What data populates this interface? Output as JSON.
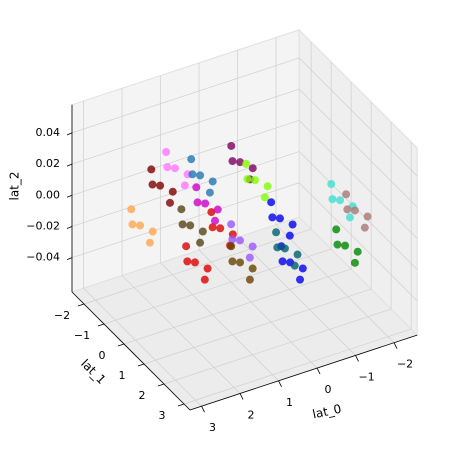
{
  "chart_data": {
    "type": "scatter3d",
    "xlabel": "lat_0",
    "ylabel": "lat_1",
    "zlabel": "lat_2",
    "xlim": [
      -2.6,
      3.3
    ],
    "ylim": [
      -2.6,
      3.3
    ],
    "zlim": [
      -0.062,
      0.058
    ],
    "xticks": [
      {
        "value": -2,
        "label": "−2"
      },
      {
        "value": -1,
        "label": "−1"
      },
      0,
      1,
      2,
      3
    ],
    "yticks": [
      {
        "value": -2,
        "label": "−2"
      },
      {
        "value": -1,
        "label": "−1"
      },
      0,
      1,
      2,
      3
    ],
    "zticks": [
      {
        "value": -0.04,
        "label": "−0.04"
      },
      {
        "value": -0.02,
        "label": "−0.02"
      },
      {
        "value": 0,
        "label": "0.00"
      },
      0.02,
      0.04
    ],
    "grid": true,
    "series": [
      {
        "color": "#800000",
        "x": [
          1.39,
          1.64,
          1.14,
          1.49,
          1.29
        ],
        "y": [
          -1.87,
          -1.77,
          -1.72,
          -2.12,
          -1.57
        ],
        "values": [
          0,
          0.004,
          -0.004,
          0.008,
          -0.008
        ]
      },
      {
        "color": "#800060",
        "x": [
          -0.63,
          -0.38,
          -0.88,
          -0.53,
          -0.73
        ],
        "y": [
          -1.76,
          -1.66,
          -1.61,
          -2.01,
          -1.46
        ],
        "values": [
          0,
          0.004,
          -0.004,
          0.008,
          -0.008
        ]
      },
      {
        "color": "#80ff00",
        "x": [
          -0.57,
          -0.32,
          -0.82,
          -0.47,
          -0.67
        ],
        "y": [
          -0.9,
          -0.8,
          -0.75,
          -1.15,
          -0.6
        ],
        "values": [
          0,
          0.004,
          -0.004,
          0.008,
          -0.008
        ]
      },
      {
        "color": "#ff77ff",
        "x": [
          0.76,
          1.01,
          0.51,
          0.86,
          0.66
        ],
        "y": [
          -2.34,
          -2.24,
          -2.19,
          -2.59,
          -2.04
        ],
        "values": [
          0,
          0.004,
          -0.004,
          0.008,
          -0.008
        ]
      },
      {
        "color": "#1f77b4",
        "x": [
          0.41,
          0.66,
          0.16,
          0.51,
          0.31
        ],
        "y": [
          -1.76,
          -1.66,
          -1.61,
          -2.01,
          -1.46
        ],
        "values": [
          0,
          0.004,
          -0.004,
          0.008,
          -0.008
        ]
      },
      {
        "color": "#ffa64d",
        "x": [
          2.56,
          2.81,
          2.31,
          2.66,
          2.46
        ],
        "y": [
          -0.62,
          -0.52,
          -0.47,
          -0.87,
          -0.32
        ],
        "values": [
          0,
          0.004,
          -0.004,
          0.008,
          -0.008
        ]
      },
      {
        "color": "#554411",
        "x": [
          1.58,
          1.83,
          1.33,
          1.68,
          1.48
        ],
        "y": [
          0,
          0.1,
          0.15,
          -0.25,
          0.3
        ],
        "values": [
          0,
          0.004,
          -0.004,
          0.008,
          -0.008
        ]
      },
      {
        "color": "#dd0000",
        "x": [
          1.05,
          1.3,
          0.8,
          1.15,
          0.95
        ],
        "y": [
          0.48,
          0.58,
          0.63,
          0.23,
          0.78
        ],
        "values": [
          0,
          0.004,
          -0.004,
          0.008,
          -0.008
        ]
      },
      {
        "color": "#dd0000",
        "x": [
          2.21,
          2.46,
          1.96,
          2.31,
          2.11
        ],
        "y": [
          1.45,
          1.55,
          1.6,
          1.2,
          1.75
        ],
        "values": [
          0,
          0.004,
          -0.004,
          0.008,
          -0.008
        ]
      },
      {
        "color": "#40e0d0",
        "x": [
          -1.84,
          -1.59,
          -2.09,
          -1.74,
          -1.94
        ],
        "y": [
          0.91,
          1.01,
          1.06,
          0.66,
          1.21
        ],
        "values": [
          0,
          0.004,
          -0.004,
          0.008,
          -0.008
        ]
      },
      {
        "color": "#0000ee",
        "x": [
          -0.31,
          -0.06,
          -0.56,
          -0.21,
          -0.41
        ],
        "y": [
          0.85,
          0.95,
          1.0,
          0.6,
          1.15
        ],
        "values": [
          0,
          0.004,
          -0.004,
          0.008,
          -0.008
        ]
      },
      {
        "color": "#0000ee",
        "x": [
          0.35,
          0.6,
          0.1,
          0.45,
          0.25
        ],
        "y": [
          2.63,
          2.73,
          2.78,
          2.38,
          2.93
        ],
        "values": [
          0,
          0.004,
          -0.004,
          0.008,
          -0.008
        ]
      },
      {
        "color": "#008800",
        "x": [
          -1.05,
          -0.8,
          -1.3,
          -0.95,
          -1.15
        ],
        "y": [
          2.68,
          2.78,
          2.83,
          2.43,
          2.98
        ],
        "values": [
          0,
          0.004,
          -0.004,
          0.008,
          -0.008
        ]
      },
      {
        "color": "#006070",
        "x": [
          0.18,
          0.43,
          -0.07,
          0.28,
          0.08
        ],
        "y": [
          2.04,
          2.14,
          2.19,
          1.79,
          2.34
        ],
        "values": [
          0,
          0.004,
          -0.004,
          0.008,
          -0.008
        ]
      },
      {
        "color": "#9955ff",
        "x": [
          0.9,
          1.15,
          0.65,
          1.0,
          0.8
        ],
        "y": [
          1.18,
          1.28,
          1.33,
          0.93,
          1.48
        ],
        "values": [
          0,
          0.004,
          -0.004,
          0.008,
          -0.008
        ]
      },
      {
        "color": "#664400",
        "x": [
          1.33,
          1.58,
          1.08,
          1.43,
          1.23
        ],
        "y": [
          2.01,
          2.11,
          2.16,
          1.76,
          2.31
        ],
        "values": [
          0,
          0.004,
          -0.004,
          0.008,
          -0.008
        ]
      },
      {
        "color": "#aa7777",
        "x": [
          -1.93,
          -1.68,
          -2.18,
          -1.83,
          -2.03
        ],
        "y": [
          1.48,
          1.58,
          1.63,
          1.23,
          1.78
        ],
        "values": [
          0,
          0.004,
          -0.004,
          0.008,
          -0.008
        ]
      },
      {
        "color": "#cc00cc",
        "x": [
          0.86,
          1.11,
          0.61,
          0.96,
          0.76
        ],
        "y": [
          -0.64,
          -0.54,
          -0.49,
          -0.89,
          -0.34
        ],
        "values": [
          0,
          0.004,
          -0.004,
          0.008,
          -0.008
        ]
      }
    ]
  }
}
